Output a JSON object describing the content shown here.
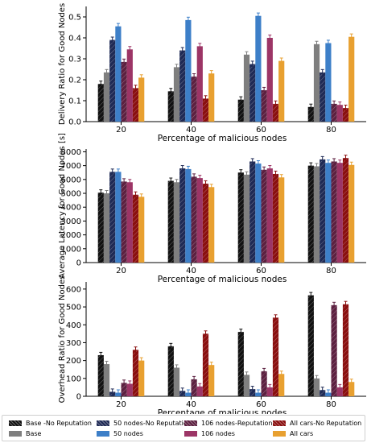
{
  "legend": [
    {
      "name": "Base -No Reputation",
      "color": "#111111",
      "hatch": true
    },
    {
      "name": "Base",
      "color": "#7f7f7f",
      "hatch": false
    },
    {
      "name": "50 nodes-No Reputation",
      "color": "#1f2a55",
      "hatch": true
    },
    {
      "name": "50 nodes",
      "color": "#3d7fc8",
      "hatch": false
    },
    {
      "name": "106 nodes-Reputation",
      "color": "#5c2040",
      "hatch": true
    },
    {
      "name": "106 nodes",
      "color": "#9c3566",
      "hatch": false
    },
    {
      "name": "All cars-No Reputation",
      "color": "#8a0f0f",
      "hatch": true
    },
    {
      "name": "All cars",
      "color": "#e8a030",
      "hatch": false
    }
  ],
  "chart_data": [
    {
      "type": "bar",
      "ylabel": "Delivery Ratio for Good Nodes",
      "xlabel": "Percentage of malicious nodes",
      "categories": [
        "20",
        "40",
        "60",
        "80"
      ],
      "ylim": [
        0,
        0.55
      ],
      "yticks": [
        "0.0",
        "0.1",
        "0.2",
        "0.3",
        "0.4",
        "0.5"
      ],
      "ytick_values": [
        0,
        0.1,
        0.2,
        0.3,
        0.4,
        0.5
      ],
      "series": [
        {
          "name": "Base -No Reputation",
          "values": [
            0.18,
            0.145,
            0.105,
            0.07
          ]
        },
        {
          "name": "Base",
          "values": [
            0.235,
            0.26,
            0.32,
            0.37
          ]
        },
        {
          "name": "50 nodes-No Reputation",
          "values": [
            0.39,
            0.34,
            0.275,
            0.235
          ]
        },
        {
          "name": "50 nodes",
          "values": [
            0.455,
            0.485,
            0.505,
            0.375
          ]
        },
        {
          "name": "106 nodes-Reputation",
          "values": [
            0.285,
            0.215,
            0.15,
            0.085
          ]
        },
        {
          "name": "106 nodes",
          "values": [
            0.345,
            0.36,
            0.4,
            0.08
          ]
        },
        {
          "name": "All cars-No Reputation",
          "values": [
            0.16,
            0.11,
            0.085,
            0.065
          ]
        },
        {
          "name": "All cars",
          "values": [
            0.21,
            0.23,
            0.29,
            0.405
          ]
        }
      ]
    },
    {
      "type": "bar",
      "ylabel": "Average Latency for Good Nodes [s]",
      "xlabel": "Percentage of malicious nodes",
      "categories": [
        "20",
        "40",
        "60",
        "80"
      ],
      "ylim": [
        0,
        8200
      ],
      "yticks": [
        "0",
        "1000",
        "2000",
        "3000",
        "4000",
        "5000",
        "6000",
        "7000",
        "8000"
      ],
      "ytick_values": [
        0,
        1000,
        2000,
        3000,
        4000,
        5000,
        6000,
        7000,
        8000
      ],
      "series": [
        {
          "name": "Base -No Reputation",
          "values": [
            5050,
            5900,
            6500,
            7000
          ]
        },
        {
          "name": "Base",
          "values": [
            5000,
            5800,
            6350,
            6950
          ]
        },
        {
          "name": "50 nodes-No Reputation",
          "values": [
            6550,
            6800,
            7300,
            7450
          ]
        },
        {
          "name": "50 nodes",
          "values": [
            6550,
            6750,
            7150,
            7200
          ]
        },
        {
          "name": "106 nodes-Reputation",
          "values": [
            5850,
            6200,
            6700,
            7300
          ]
        },
        {
          "name": "106 nodes",
          "values": [
            5800,
            6100,
            6800,
            7200
          ]
        },
        {
          "name": "All cars-No Reputation",
          "values": [
            4900,
            5700,
            6400,
            7550
          ]
        },
        {
          "name": "All cars",
          "values": [
            4750,
            5450,
            6150,
            7050
          ]
        }
      ]
    },
    {
      "type": "bar",
      "ylabel": "Overhead Ratio for Good Nodes",
      "xlabel": "Percentage of malicious nodes",
      "categories": [
        "20",
        "40",
        "60",
        "80"
      ],
      "ylim": [
        0,
        640
      ],
      "yticks": [
        "0",
        "100",
        "200",
        "300",
        "400",
        "500",
        "600"
      ],
      "ytick_values": [
        0,
        100,
        200,
        300,
        400,
        500,
        600
      ],
      "series": [
        {
          "name": "Base -No Reputation",
          "values": [
            230,
            280,
            360,
            565
          ]
        },
        {
          "name": "Base",
          "values": [
            180,
            160,
            120,
            100
          ]
        },
        {
          "name": "50 nodes-No Reputation",
          "values": [
            25,
            30,
            40,
            35
          ]
        },
        {
          "name": "50 nodes",
          "values": [
            20,
            20,
            20,
            20
          ]
        },
        {
          "name": "106 nodes-Reputation",
          "values": [
            75,
            95,
            140,
            510
          ]
        },
        {
          "name": "106 nodes",
          "values": [
            70,
            55,
            50,
            50
          ]
        },
        {
          "name": "All cars-No Reputation",
          "values": [
            260,
            350,
            440,
            515
          ]
        },
        {
          "name": "All cars",
          "values": [
            200,
            175,
            125,
            80
          ]
        }
      ]
    }
  ]
}
